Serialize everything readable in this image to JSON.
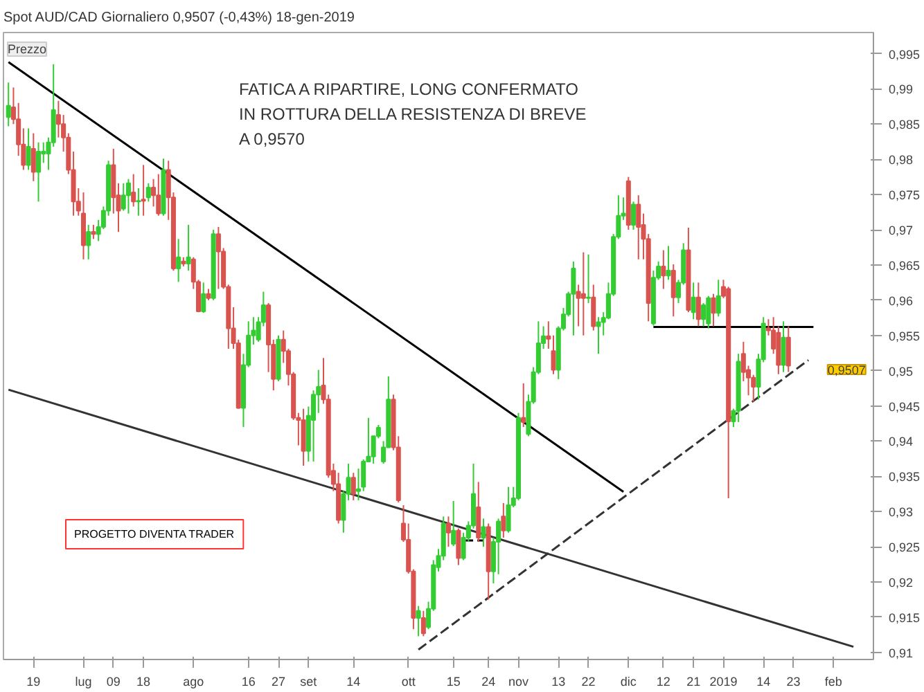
{
  "chart_data": {
    "type": "candlestick",
    "title": "Spot AUD/CAD   Giornaliero   0,9507 (-0,43%)   18-gen-2019",
    "ylabel": "Prezzo",
    "annotations": [
      "FATICA A RIPARTIRE, LONG CONFERMATO\nIN ROTTURA DELLA RESISTENZA DI BREVE\nA 0,9570",
      "PROGETTO DIVENTA TRADER",
      "0,9507"
    ],
    "categories": [
      null,
      null,
      null,
      null,
      null,
      "19",
      null,
      null,
      null,
      null,
      null,
      null,
      null,
      null,
      null,
      "lug",
      null,
      null,
      null,
      null,
      null,
      "09",
      null,
      null,
      null,
      null,
      null,
      "18",
      null,
      null,
      null,
      null,
      null,
      null,
      null,
      null,
      null,
      "ago",
      null,
      null,
      null,
      null,
      null,
      null,
      null,
      null,
      null,
      null,
      "16",
      null,
      null,
      null,
      null,
      null,
      "27",
      null,
      null,
      null,
      null,
      null,
      "set",
      null,
      null,
      null,
      null,
      null,
      null,
      null,
      null,
      "14",
      null,
      null,
      null,
      null,
      null,
      null,
      null,
      null,
      null,
      null,
      "ott",
      null,
      null,
      null,
      null,
      null,
      null,
      null,
      null,
      "15",
      null,
      null,
      null,
      null,
      null,
      null,
      "24",
      null,
      null,
      null,
      null,
      null,
      "nov",
      null,
      null,
      null,
      null,
      null,
      null,
      null,
      "13",
      null,
      null,
      null,
      null,
      null,
      "22",
      null,
      null,
      null,
      null,
      null,
      null,
      null,
      "dic",
      null,
      null,
      null,
      null,
      null,
      null,
      "12",
      null,
      null,
      null,
      null,
      null,
      "21",
      null,
      null,
      null,
      null,
      null,
      "2019",
      null,
      null,
      null,
      null,
      null,
      null,
      null,
      "14",
      null,
      null,
      null,
      null,
      null,
      "23",
      null,
      null,
      null,
      null,
      null,
      null,
      null,
      "feb",
      null,
      null,
      null,
      null,
      null,
      null,
      null
    ],
    "ohlc": [
      [
        0.986,
        0.9909,
        0.9847,
        0.9876
      ],
      [
        0.9874,
        0.9902,
        0.985,
        0.9857
      ],
      [
        0.9857,
        0.988,
        0.9805,
        0.9821
      ],
      [
        0.9821,
        0.9844,
        0.9785,
        0.9792
      ],
      [
        0.9792,
        0.9844,
        0.9785,
        0.9818
      ],
      [
        0.9815,
        0.9837,
        0.9769,
        0.9782
      ],
      [
        0.9782,
        0.9824,
        0.974,
        0.9811
      ],
      [
        0.9808,
        0.9824,
        0.9795,
        0.9811
      ],
      [
        0.9808,
        0.9831,
        0.9785,
        0.9824
      ],
      [
        0.9824,
        0.9935,
        0.9818,
        0.987
      ],
      [
        0.9863,
        0.9883,
        0.9831,
        0.985
      ],
      [
        0.985,
        0.9863,
        0.9811,
        0.9831
      ],
      [
        0.9831,
        0.9837,
        0.9779,
        0.9785
      ],
      [
        0.9785,
        0.9811,
        0.972,
        0.974
      ],
      [
        0.974,
        0.9759,
        0.972,
        0.9727
      ],
      [
        0.9723,
        0.9753,
        0.9658,
        0.9678
      ],
      [
        0.9678,
        0.9707,
        0.9658,
        0.9697
      ],
      [
        0.9697,
        0.9707,
        0.9687,
        0.9694
      ],
      [
        0.9694,
        0.9714,
        0.9684,
        0.9704
      ],
      [
        0.9704,
        0.9733,
        0.9701,
        0.9727
      ],
      [
        0.9727,
        0.9798,
        0.972,
        0.9792
      ],
      [
        0.9792,
        0.9815,
        0.9723,
        0.9746
      ],
      [
        0.9749,
        0.9766,
        0.9697,
        0.9727
      ],
      [
        0.973,
        0.9766,
        0.9727,
        0.9749
      ],
      [
        0.9749,
        0.9772,
        0.9723,
        0.9766
      ],
      [
        0.9753,
        0.9779,
        0.9733,
        0.974
      ],
      [
        0.974,
        0.9759,
        0.972,
        0.9741
      ],
      [
        0.9743,
        0.9792,
        0.972,
        0.9741
      ],
      [
        0.9746,
        0.9766,
        0.974,
        0.976
      ],
      [
        0.976,
        0.9772,
        0.9733,
        0.9749
      ],
      [
        0.9749,
        0.9779,
        0.972,
        0.9723
      ],
      [
        0.9723,
        0.9801,
        0.972,
        0.9785
      ],
      [
        0.9785,
        0.9798,
        0.9714,
        0.9746
      ],
      [
        0.9746,
        0.9753,
        0.9642,
        0.9645
      ],
      [
        0.9645,
        0.9687,
        0.9626,
        0.9661
      ],
      [
        0.9655,
        0.9661,
        0.9648,
        0.9652
      ],
      [
        0.9652,
        0.9707,
        0.9642,
        0.9661
      ],
      [
        0.9658,
        0.9661,
        0.9616,
        0.9626
      ],
      [
        0.9626,
        0.9629,
        0.9583,
        0.9584
      ],
      [
        0.9584,
        0.9625,
        0.9582,
        0.9609
      ],
      [
        0.9609,
        0.9616,
        0.96,
        0.9603
      ],
      [
        0.9603,
        0.97,
        0.96,
        0.9694
      ],
      [
        0.9694,
        0.9704,
        0.9616,
        0.9669
      ],
      [
        0.9669,
        0.9674,
        0.9616,
        0.9619
      ],
      [
        0.9619,
        0.9622,
        0.9531,
        0.956
      ],
      [
        0.956,
        0.959,
        0.9531,
        0.9539
      ],
      [
        0.9539,
        0.9544,
        0.9446,
        0.9447
      ],
      [
        0.9447,
        0.9524,
        0.942,
        0.9508
      ],
      [
        0.9508,
        0.957,
        0.9505,
        0.955
      ],
      [
        0.955,
        0.9576,
        0.9537,
        0.9557
      ],
      [
        0.9544,
        0.9576,
        0.9541,
        0.9569
      ],
      [
        0.9569,
        0.9612,
        0.9563,
        0.9593
      ],
      [
        0.9593,
        0.9596,
        0.9498,
        0.9537
      ],
      [
        0.9537,
        0.9544,
        0.9472,
        0.9488
      ],
      [
        0.9488,
        0.955,
        0.9485,
        0.9544
      ],
      [
        0.9544,
        0.9557,
        0.9511,
        0.9528
      ],
      [
        0.9528,
        0.9531,
        0.9479,
        0.9495
      ],
      [
        0.9495,
        0.9498,
        0.943,
        0.9433
      ],
      [
        0.9433,
        0.944,
        0.9394,
        0.943
      ],
      [
        0.943,
        0.9446,
        0.9365,
        0.9386
      ],
      [
        0.9386,
        0.9449,
        0.9371,
        0.9436
      ],
      [
        0.943,
        0.9472,
        0.9371,
        0.9466
      ],
      [
        0.9466,
        0.9501,
        0.944,
        0.9477
      ],
      [
        0.9479,
        0.9518,
        0.9453,
        0.9459
      ],
      [
        0.9459,
        0.9466,
        0.9348,
        0.9352
      ],
      [
        0.9358,
        0.9368,
        0.9329,
        0.9339
      ],
      [
        0.9339,
        0.9355,
        0.9283,
        0.9288
      ],
      [
        0.9288,
        0.9329,
        0.927,
        0.9325
      ],
      [
        0.9325,
        0.9368,
        0.9316,
        0.9348
      ],
      [
        0.9348,
        0.9355,
        0.9316,
        0.9325
      ],
      [
        0.9329,
        0.9361,
        0.9316,
        0.9332
      ],
      [
        0.9335,
        0.9374,
        0.9329,
        0.9371
      ],
      [
        0.9371,
        0.9433,
        0.9371,
        0.9378
      ],
      [
        0.9378,
        0.9407,
        0.9368,
        0.9407
      ],
      [
        0.9407,
        0.9423,
        0.9404,
        0.9419
      ],
      [
        0.9371,
        0.94,
        0.9368,
        0.9391
      ],
      [
        0.9391,
        0.9492,
        0.9391,
        0.9459
      ],
      [
        0.9459,
        0.9466,
        0.9387,
        0.9391
      ],
      [
        0.9391,
        0.9407,
        0.9313,
        0.9316
      ],
      [
        0.9283,
        0.9309,
        0.9257,
        0.926
      ],
      [
        0.926,
        0.9283,
        0.9212,
        0.9215
      ],
      [
        0.9215,
        0.9218,
        0.9133,
        0.9149
      ],
      [
        0.9149,
        0.9166,
        0.9123,
        0.9159
      ],
      [
        0.9149,
        0.9159,
        0.9123,
        0.9127
      ],
      [
        0.9136,
        0.9172,
        0.9133,
        0.9162
      ],
      [
        0.9162,
        0.9231,
        0.9159,
        0.9224
      ],
      [
        0.9221,
        0.9247,
        0.9215,
        0.9237
      ],
      [
        0.9237,
        0.9293,
        0.9231,
        0.9283
      ],
      [
        0.9283,
        0.9293,
        0.925,
        0.927
      ],
      [
        0.9254,
        0.9315,
        0.9251,
        0.9273
      ],
      [
        0.9273,
        0.9276,
        0.9224,
        0.9234
      ],
      [
        0.9234,
        0.927,
        0.9231,
        0.9263
      ],
      [
        0.9263,
        0.9286,
        0.9257,
        0.928
      ],
      [
        0.928,
        0.9368,
        0.9276,
        0.9325
      ],
      [
        0.9306,
        0.9342,
        0.9257,
        0.9263
      ],
      [
        0.9263,
        0.929,
        0.925,
        0.9278
      ],
      [
        0.9278,
        0.9283,
        0.9175,
        0.9215
      ],
      [
        0.9215,
        0.9263,
        0.9198,
        0.9257
      ],
      [
        0.9257,
        0.929,
        0.9211,
        0.9286
      ],
      [
        0.9293,
        0.9312,
        0.9263,
        0.9273
      ],
      [
        0.9273,
        0.9335,
        0.927,
        0.9309
      ],
      [
        0.9309,
        0.9335,
        0.9306,
        0.9319
      ],
      [
        0.9319,
        0.944,
        0.9316,
        0.9433
      ],
      [
        0.9433,
        0.9482,
        0.942,
        0.9427
      ],
      [
        0.941,
        0.9466,
        0.9407,
        0.9456
      ],
      [
        0.9456,
        0.9505,
        0.9453,
        0.9498
      ],
      [
        0.9498,
        0.957,
        0.9495,
        0.9539
      ],
      [
        0.9539,
        0.9563,
        0.9531,
        0.9549
      ],
      [
        0.9549,
        0.957,
        0.9531,
        0.9545
      ],
      [
        0.9528,
        0.955,
        0.9495,
        0.9501
      ],
      [
        0.9501,
        0.9563,
        0.9488,
        0.956
      ],
      [
        0.956,
        0.9589,
        0.9557,
        0.958
      ],
      [
        0.958,
        0.9612,
        0.9577,
        0.9609
      ],
      [
        0.9609,
        0.9655,
        0.955,
        0.9645
      ],
      [
        0.9612,
        0.9622,
        0.9563,
        0.9603
      ],
      [
        0.9609,
        0.9668,
        0.955,
        0.9603
      ],
      [
        0.9603,
        0.9665,
        0.9596,
        0.9604
      ],
      [
        0.9604,
        0.9622,
        0.9557,
        0.9563
      ],
      [
        0.9563,
        0.9576,
        0.9524,
        0.9569
      ],
      [
        0.9569,
        0.9583,
        0.955,
        0.9575
      ],
      [
        0.9575,
        0.9625,
        0.9573,
        0.9609
      ],
      [
        0.9609,
        0.9694,
        0.9606,
        0.969
      ],
      [
        0.969,
        0.9749,
        0.9687,
        0.972
      ],
      [
        0.972,
        0.9746,
        0.9714,
        0.9723
      ],
      [
        0.9769,
        0.9775,
        0.97,
        0.9707
      ],
      [
        0.9707,
        0.974,
        0.97,
        0.9736
      ],
      [
        0.9736,
        0.9749,
        0.9658,
        0.9704
      ],
      [
        0.9707,
        0.9723,
        0.9658,
        0.9687
      ],
      [
        0.9687,
        0.9694,
        0.957,
        0.9596
      ],
      [
        0.9567,
        0.9642,
        0.9564,
        0.9632
      ],
      [
        0.9632,
        0.9655,
        0.9629,
        0.9648
      ],
      [
        0.9648,
        0.9671,
        0.9616,
        0.9635
      ],
      [
        0.9635,
        0.9677,
        0.9629,
        0.9642
      ],
      [
        0.9642,
        0.9651,
        0.9577,
        0.9604
      ],
      [
        0.9604,
        0.9629,
        0.9596,
        0.9625
      ],
      [
        0.9625,
        0.9681,
        0.9622,
        0.9671
      ],
      [
        0.9671,
        0.9703,
        0.9583,
        0.9586
      ],
      [
        0.9583,
        0.9625,
        0.9573,
        0.9604
      ],
      [
        0.9604,
        0.9625,
        0.9563,
        0.9573
      ],
      [
        0.9573,
        0.9596,
        0.9563,
        0.9593
      ],
      [
        0.9567,
        0.9606,
        0.956,
        0.9603
      ],
      [
        0.9603,
        0.9609,
        0.9563,
        0.9582
      ],
      [
        0.9582,
        0.9629,
        0.9577,
        0.9606
      ],
      [
        0.9619,
        0.9629,
        0.9603,
        0.9606
      ],
      [
        0.9616,
        0.9619,
        0.9319,
        0.9428
      ],
      [
        0.9428,
        0.9446,
        0.942,
        0.9443
      ],
      [
        0.9443,
        0.9524,
        0.9427,
        0.9513
      ],
      [
        0.9524,
        0.9541,
        0.9485,
        0.9498
      ],
      [
        0.9501,
        0.9507,
        0.9465,
        0.949
      ],
      [
        0.949,
        0.9494,
        0.9456,
        0.9477
      ],
      [
        0.9477,
        0.9524,
        0.9459,
        0.9516
      ],
      [
        0.9516,
        0.9576,
        0.9512,
        0.9567
      ],
      [
        0.956,
        0.9573,
        0.955,
        0.9557
      ],
      [
        0.9557,
        0.9576,
        0.9524,
        0.9531
      ],
      [
        0.9554,
        0.9563,
        0.9495,
        0.9508
      ],
      [
        0.9508,
        0.957,
        0.9498,
        0.9547
      ],
      [
        0.9547,
        0.9563,
        0.9498,
        0.9507
      ],
      null,
      null,
      null,
      null,
      null,
      null,
      null,
      null,
      null,
      null,
      null,
      null,
      null,
      null,
      null,
      null
    ],
    "series": [
      {
        "type": "line",
        "color": "#000000",
        "values": [
          0.9938,
          null,
          null,
          null,
          null,
          null,
          null,
          null,
          null,
          null,
          null,
          null,
          null,
          null,
          null,
          null,
          null,
          null,
          null,
          null,
          null,
          null,
          null,
          null,
          null,
          null,
          null,
          null,
          null,
          null,
          null,
          null,
          null,
          null,
          null,
          null,
          null,
          null,
          null,
          null,
          null,
          null,
          null,
          null,
          null,
          null,
          null,
          null,
          null,
          null,
          null,
          null,
          null,
          null,
          null,
          null,
          null,
          null,
          null,
          null,
          null,
          null,
          null,
          null,
          null,
          null,
          null,
          null,
          null,
          null,
          null,
          null,
          null,
          null,
          null,
          null,
          null,
          null,
          null,
          null,
          null,
          null,
          null,
          null,
          null,
          null,
          null,
          null,
          null,
          null,
          null,
          null,
          null,
          null,
          null,
          null,
          null,
          null,
          null,
          null,
          null,
          null,
          null,
          null,
          null,
          null,
          null,
          null,
          null,
          null,
          null,
          null,
          null,
          null,
          null,
          null,
          null,
          null,
          null,
          null,
          null,
          null,
          null,
          0.9328,
          null,
          null,
          null,
          null,
          null,
          null,
          null,
          null,
          null,
          null,
          null,
          null,
          null,
          null,
          null,
          null,
          null,
          null,
          null,
          null,
          null,
          null,
          null,
          null,
          null,
          null,
          null,
          null,
          null,
          null,
          null,
          null,
          null,
          null,
          null,
          null,
          null,
          null,
          null,
          null,
          null,
          null,
          null,
          null,
          null,
          null,
          null,
          null,
          null
        ]
      },
      {
        "type": "line",
        "color": "#333333",
        "values": [
          0.9473,
          null,
          null,
          null,
          null,
          null,
          null,
          null,
          null,
          null,
          null,
          null,
          null,
          null,
          null,
          null,
          null,
          null,
          null,
          null,
          null,
          null,
          null,
          null,
          null,
          null,
          null,
          null,
          null,
          null,
          null,
          null,
          null,
          null,
          null,
          null,
          null,
          null,
          null,
          null,
          null,
          null,
          null,
          null,
          null,
          null,
          null,
          null,
          null,
          null,
          null,
          null,
          null,
          null,
          null,
          null,
          null,
          null,
          null,
          null,
          null,
          null,
          null,
          null,
          null,
          null,
          null,
          null,
          null,
          null,
          null,
          null,
          null,
          null,
          null,
          null,
          null,
          null,
          null,
          null,
          null,
          null,
          null,
          null,
          null,
          null,
          null,
          null,
          null,
          null,
          null,
          null,
          null,
          null,
          null,
          null,
          null,
          null,
          null,
          null,
          null,
          null,
          null,
          null,
          null,
          null,
          null,
          null,
          null,
          null,
          null,
          null,
          null,
          null,
          null,
          null,
          null,
          null,
          null,
          null,
          null,
          null,
          null,
          null,
          null,
          null,
          null,
          null,
          null,
          null,
          null,
          null,
          null,
          null,
          null,
          null,
          null,
          null,
          null,
          null,
          null,
          null,
          null,
          null,
          null,
          null,
          null,
          null,
          null,
          null,
          null,
          null,
          null,
          null,
          null,
          null,
          null,
          null,
          null,
          null,
          null,
          null,
          null,
          null,
          null,
          null,
          null,
          null,
          null,
          0.9108,
          null,
          null,
          null
        ]
      },
      {
        "type": "line",
        "color": "#333333",
        "line_style": "dashed",
        "values": [
          null,
          null,
          null,
          null,
          null,
          null,
          null,
          null,
          null,
          null,
          null,
          null,
          null,
          null,
          null,
          null,
          null,
          null,
          null,
          null,
          null,
          null,
          null,
          null,
          null,
          null,
          null,
          null,
          null,
          null,
          null,
          null,
          null,
          null,
          null,
          null,
          null,
          null,
          null,
          null,
          null,
          null,
          null,
          null,
          null,
          null,
          null,
          null,
          null,
          null,
          null,
          null,
          null,
          null,
          null,
          null,
          null,
          null,
          null,
          null,
          null,
          null,
          null,
          null,
          null,
          null,
          null,
          null,
          null,
          null,
          null,
          null,
          null,
          null,
          null,
          null,
          null,
          null,
          null,
          null,
          null,
          null,
          0.9104,
          null,
          null,
          null,
          null,
          null,
          null,
          null,
          null,
          null,
          null,
          null,
          null,
          null,
          null,
          null,
          null,
          null,
          null,
          null,
          null,
          null,
          null,
          null,
          null,
          null,
          null,
          null,
          null,
          null,
          null,
          null,
          null,
          null,
          null,
          null,
          null,
          null,
          null,
          null,
          null,
          null,
          null,
          null,
          null,
          null,
          null,
          null,
          null,
          null,
          null,
          null,
          null,
          null,
          null,
          null,
          null,
          null,
          null,
          null,
          null,
          null,
          null,
          null,
          null,
          null,
          null,
          null,
          null,
          null,
          null,
          null,
          null,
          null,
          null,
          null,
          null,
          null,
          0.9515,
          null,
          null,
          null,
          null,
          null,
          null,
          null,
          null,
          null,
          null,
          null,
          null
        ]
      },
      {
        "type": "line",
        "color": "#000000",
        "values": [
          null,
          null,
          null,
          null,
          null,
          null,
          null,
          null,
          null,
          null,
          null,
          null,
          null,
          null,
          null,
          null,
          null,
          null,
          null,
          null,
          null,
          null,
          null,
          null,
          null,
          null,
          null,
          null,
          null,
          null,
          null,
          null,
          null,
          null,
          null,
          null,
          null,
          null,
          null,
          null,
          null,
          null,
          null,
          null,
          null,
          null,
          null,
          null,
          null,
          null,
          null,
          null,
          null,
          null,
          null,
          null,
          null,
          null,
          null,
          null,
          null,
          null,
          null,
          null,
          null,
          null,
          null,
          null,
          null,
          null,
          null,
          null,
          null,
          null,
          null,
          null,
          null,
          null,
          null,
          null,
          null,
          null,
          null,
          null,
          null,
          null,
          null,
          null,
          null,
          null,
          null,
          null,
          null,
          null,
          null,
          null,
          null,
          null,
          null,
          null,
          null,
          null,
          null,
          null,
          null,
          null,
          null,
          null,
          null,
          null,
          null,
          null,
          null,
          null,
          null,
          null,
          null,
          null,
          null,
          null,
          null,
          null,
          null,
          null,
          null,
          null,
          null,
          null,
          null,
          0.9562,
          null,
          null,
          null,
          null,
          null,
          null,
          null,
          null,
          null,
          null,
          null,
          null,
          null,
          null,
          null,
          null,
          null,
          null,
          null,
          null,
          null,
          null,
          null,
          null,
          null,
          null,
          null,
          null,
          null,
          null,
          null,
          0.9562,
          null,
          null,
          null,
          null,
          null,
          null,
          null,
          null,
          null,
          null,
          null
        ]
      },
      {
        "type": "line",
        "color": "#000000",
        "line_style": "dashed",
        "values": [
          null,
          null,
          null,
          null,
          null,
          null,
          null,
          null,
          null,
          null,
          null,
          null,
          null,
          null,
          null,
          null,
          null,
          null,
          null,
          null,
          null,
          null,
          null,
          null,
          null,
          null,
          null,
          null,
          null,
          null,
          null,
          null,
          null,
          null,
          null,
          null,
          null,
          null,
          null,
          null,
          null,
          null,
          null,
          null,
          null,
          null,
          null,
          null,
          null,
          null,
          null,
          null,
          null,
          null,
          null,
          null,
          null,
          null,
          null,
          null,
          null,
          null,
          null,
          null,
          null,
          null,
          null,
          null,
          null,
          null,
          null,
          null,
          null,
          null,
          null,
          null,
          null,
          null,
          null,
          null,
          null,
          null,
          null,
          null,
          null,
          null,
          null,
          null,
          null,
          null,
          null,
          0.9259,
          null,
          null,
          null,
          0.9259,
          null,
          null,
          null,
          null,
          null,
          null,
          null,
          null,
          null,
          null,
          null,
          null,
          null,
          null,
          null,
          null,
          null,
          null,
          null,
          null,
          null,
          null,
          null,
          null,
          null,
          null,
          null,
          null,
          null,
          null,
          null,
          null,
          null,
          null,
          null,
          null,
          null,
          null,
          null,
          null,
          null,
          null,
          null,
          null,
          null,
          null,
          null,
          null,
          null,
          null,
          null,
          null,
          null,
          null,
          null,
          null,
          null,
          null,
          null,
          null,
          null,
          null,
          null,
          null,
          null,
          null,
          null,
          null,
          null,
          null,
          null,
          null,
          null,
          null,
          null,
          null,
          null
        ]
      }
    ],
    "ylim": [
      0.909,
      0.998
    ],
    "yticks": [
      {
        "value": 0.91,
        "label": "0,91"
      },
      {
        "value": 0.915,
        "label": "0,915"
      },
      {
        "value": 0.92,
        "label": "0,92"
      },
      {
        "value": 0.925,
        "label": "0,925"
      },
      {
        "value": 0.93,
        "label": "0,93"
      },
      {
        "value": 0.935,
        "label": "0,935"
      },
      {
        "value": 0.94,
        "label": "0,94"
      },
      {
        "value": 0.945,
        "label": "0,945"
      },
      {
        "value": 0.95,
        "label": "0,95"
      },
      {
        "value": 0.955,
        "label": "0,955"
      },
      {
        "value": 0.96,
        "label": "0,96"
      },
      {
        "value": 0.965,
        "label": "0,965"
      },
      {
        "value": 0.97,
        "label": "0,97"
      },
      {
        "value": 0.975,
        "label": "0,975"
      },
      {
        "value": 0.98,
        "label": "0,98"
      },
      {
        "value": 0.985,
        "label": "0,985"
      },
      {
        "value": 0.99,
        "label": "0,99"
      },
      {
        "value": 0.995,
        "label": "0,995"
      }
    ]
  }
}
